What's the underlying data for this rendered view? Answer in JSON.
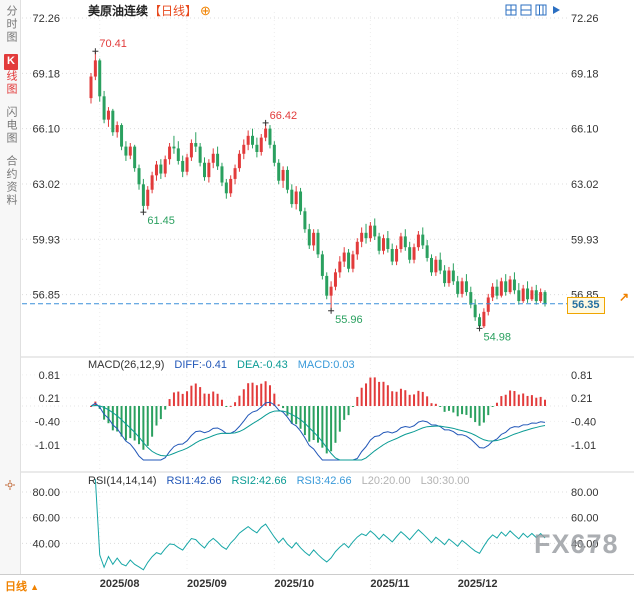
{
  "header": {
    "symbol": "美原油连续",
    "period_tag": "【日线】",
    "add_glyph": "⊕"
  },
  "sidebar": {
    "items": [
      {
        "label": "分时图",
        "active": false
      },
      {
        "badge": "K",
        "label": "线图",
        "active": true
      },
      {
        "label": "闪电图",
        "active": false
      },
      {
        "label": "合约资料",
        "active": false
      }
    ]
  },
  "price_panel": {
    "last_price": "56.35",
    "arrow_glyph": "↗"
  },
  "macd_panel": {
    "title": "MACD(26,12,9)",
    "diff": "DIFF:-0.41",
    "dea": "DEA:-0.43",
    "macd": "MACD:0.03"
  },
  "rsi_panel": {
    "title": "RSI(14,14,14)",
    "rsi1": "RSI1:42.66",
    "rsi2": "RSI2:42.66",
    "rsi3": "RSI3:42.66",
    "l20": "L20:20.00",
    "l30": "L30:30.00"
  },
  "bottom_bar": {
    "period_label": "日线",
    "arrow_glyph": "▲"
  },
  "watermark": "FX678",
  "colors": {
    "up": "#e23b3b",
    "down": "#2aa05f",
    "diff_line": "#2257b8",
    "dea_line": "#0a9b94",
    "rsi_line": "#18a7a7",
    "last_price_line": "#3a8fd9",
    "accent": "#f08200",
    "toolbar_icon": "#2b6fc2"
  },
  "chart_data": {
    "type": "candlestick",
    "period": "日线",
    "price_axis": [
      72.26,
      69.18,
      66.1,
      63.02,
      59.93,
      56.85
    ],
    "annotations": [
      {
        "bar": 1,
        "price": 70.41,
        "side": "above",
        "trend": "up"
      },
      {
        "bar": 40,
        "price": 66.42,
        "side": "above",
        "trend": "up"
      },
      {
        "bar": 12,
        "price": 61.45,
        "side": "below",
        "trend": "down"
      },
      {
        "bar": 55,
        "price": 55.96,
        "side": "below",
        "trend": "down"
      },
      {
        "bar": 89,
        "price": 54.98,
        "side": "below",
        "trend": "down"
      }
    ],
    "months": [
      {
        "label": "2025/08",
        "bar": 2
      },
      {
        "label": "2025/09",
        "bar": 22
      },
      {
        "label": "2025/10",
        "bar": 42
      },
      {
        "label": "2025/11",
        "bar": 64
      },
      {
        "label": "2025/12",
        "bar": 84
      }
    ],
    "indicators": {
      "macd": {
        "params": [
          26,
          12,
          9
        ],
        "diff": -0.41,
        "dea": -0.43,
        "macd": 0.03,
        "axis": [
          0.81,
          0.21,
          -0.4,
          -1.01
        ]
      },
      "rsi": {
        "params": [
          14,
          14,
          14
        ],
        "rsi1": 42.66,
        "rsi2": 42.66,
        "rsi3": 42.66,
        "l20": 20.0,
        "l30": 30.0,
        "axis": [
          80,
          60,
          40
        ]
      }
    },
    "ohlc": [
      [
        67.8,
        69.2,
        67.5,
        69.0
      ],
      [
        69.0,
        70.41,
        68.8,
        69.9
      ],
      [
        69.9,
        70.0,
        67.6,
        67.9
      ],
      [
        67.9,
        68.2,
        66.4,
        66.6
      ],
      [
        66.6,
        67.3,
        66.2,
        67.1
      ],
      [
        67.1,
        67.2,
        65.7,
        65.9
      ],
      [
        65.9,
        66.5,
        65.6,
        66.3
      ],
      [
        66.3,
        66.4,
        64.9,
        65.1
      ],
      [
        65.1,
        65.4,
        64.3,
        64.6
      ],
      [
        64.6,
        65.3,
        64.4,
        65.1
      ],
      [
        65.1,
        65.2,
        63.7,
        63.9
      ],
      [
        63.9,
        64.1,
        62.7,
        63.0
      ],
      [
        63.0,
        63.3,
        61.45,
        61.8
      ],
      [
        61.8,
        62.9,
        61.6,
        62.7
      ],
      [
        62.7,
        63.7,
        62.5,
        63.5
      ],
      [
        63.5,
        64.3,
        63.2,
        64.1
      ],
      [
        64.1,
        64.4,
        63.3,
        63.6
      ],
      [
        63.6,
        64.6,
        63.4,
        64.4
      ],
      [
        64.4,
        65.3,
        64.1,
        65.1
      ],
      [
        65.1,
        65.7,
        64.7,
        65.0
      ],
      [
        65.0,
        65.4,
        64.1,
        64.3
      ],
      [
        64.3,
        64.6,
        63.4,
        63.7
      ],
      [
        63.7,
        64.7,
        63.5,
        64.5
      ],
      [
        64.5,
        65.5,
        64.3,
        65.3
      ],
      [
        65.3,
        65.9,
        64.8,
        65.1
      ],
      [
        65.1,
        65.3,
        64.0,
        64.2
      ],
      [
        64.2,
        64.5,
        63.2,
        63.4
      ],
      [
        63.4,
        64.4,
        63.1,
        64.2
      ],
      [
        64.2,
        65.0,
        63.9,
        64.7
      ],
      [
        64.7,
        65.1,
        63.8,
        64.0
      ],
      [
        64.0,
        64.2,
        62.9,
        63.1
      ],
      [
        63.1,
        63.3,
        62.2,
        62.5
      ],
      [
        62.5,
        63.5,
        62.3,
        63.3
      ],
      [
        63.3,
        64.1,
        63.0,
        63.9
      ],
      [
        63.9,
        64.9,
        63.7,
        64.7
      ],
      [
        64.7,
        65.5,
        64.4,
        65.2
      ],
      [
        65.2,
        66.0,
        64.9,
        65.7
      ],
      [
        65.7,
        66.1,
        65.0,
        65.2
      ],
      [
        65.2,
        65.6,
        64.5,
        64.8
      ],
      [
        64.8,
        65.8,
        64.6,
        65.6
      ],
      [
        65.6,
        66.42,
        65.4,
        66.1
      ],
      [
        66.1,
        66.3,
        65.0,
        65.2
      ],
      [
        65.2,
        65.4,
        64.0,
        64.2
      ],
      [
        64.2,
        64.4,
        63.0,
        63.2
      ],
      [
        63.2,
        64.0,
        62.8,
        63.8
      ],
      [
        63.8,
        64.0,
        62.5,
        62.7
      ],
      [
        62.7,
        63.0,
        61.7,
        61.9
      ],
      [
        61.9,
        62.9,
        61.6,
        62.6
      ],
      [
        62.6,
        62.8,
        61.3,
        61.5
      ],
      [
        61.5,
        61.7,
        60.3,
        60.5
      ],
      [
        60.5,
        60.8,
        59.4,
        59.6
      ],
      [
        59.6,
        60.5,
        59.3,
        60.3
      ],
      [
        60.3,
        60.5,
        58.9,
        59.1
      ],
      [
        59.1,
        59.3,
        57.7,
        57.9
      ],
      [
        57.9,
        58.1,
        56.6,
        56.8
      ],
      [
        56.8,
        57.6,
        55.96,
        57.3
      ],
      [
        57.3,
        58.3,
        57.1,
        58.1
      ],
      [
        58.1,
        59.0,
        57.8,
        58.7
      ],
      [
        58.7,
        59.5,
        58.4,
        59.2
      ],
      [
        59.2,
        59.4,
        58.1,
        58.3
      ],
      [
        58.3,
        59.3,
        58.1,
        59.1
      ],
      [
        59.1,
        60.0,
        58.8,
        59.8
      ],
      [
        59.8,
        60.6,
        59.5,
        60.3
      ],
      [
        60.3,
        60.8,
        59.7,
        60.0
      ],
      [
        60.0,
        60.9,
        59.8,
        60.7
      ],
      [
        60.7,
        61.1,
        59.9,
        60.1
      ],
      [
        60.1,
        60.3,
        59.1,
        59.3
      ],
      [
        59.3,
        60.2,
        59.1,
        60.0
      ],
      [
        60.0,
        60.4,
        59.2,
        59.4
      ],
      [
        59.4,
        59.7,
        58.5,
        58.7
      ],
      [
        58.7,
        59.6,
        58.5,
        59.4
      ],
      [
        59.4,
        60.3,
        59.2,
        60.1
      ],
      [
        60.1,
        60.5,
        59.3,
        59.5
      ],
      [
        59.5,
        59.8,
        58.6,
        58.8
      ],
      [
        58.8,
        59.7,
        58.6,
        59.5
      ],
      [
        59.5,
        60.4,
        59.3,
        60.2
      ],
      [
        60.2,
        60.6,
        59.4,
        59.6
      ],
      [
        59.6,
        59.9,
        58.7,
        58.9
      ],
      [
        58.9,
        59.1,
        57.9,
        58.1
      ],
      [
        58.1,
        59.0,
        57.9,
        58.8
      ],
      [
        58.8,
        59.2,
        58.0,
        58.2
      ],
      [
        58.2,
        58.5,
        57.3,
        57.5
      ],
      [
        57.5,
        58.4,
        57.3,
        58.2
      ],
      [
        58.2,
        58.6,
        57.4,
        57.6
      ],
      [
        57.6,
        57.9,
        56.7,
        56.9
      ],
      [
        56.9,
        57.8,
        56.7,
        57.6
      ],
      [
        57.6,
        58.0,
        56.8,
        57.0
      ],
      [
        57.0,
        57.3,
        56.1,
        56.3
      ],
      [
        56.3,
        56.6,
        55.4,
        55.6
      ],
      [
        55.6,
        55.8,
        54.98,
        55.1
      ],
      [
        55.1,
        56.1,
        55.0,
        55.9
      ],
      [
        55.9,
        56.9,
        55.7,
        56.7
      ],
      [
        56.7,
        57.5,
        56.5,
        57.3
      ],
      [
        57.3,
        57.7,
        56.6,
        56.8
      ],
      [
        56.8,
        57.8,
        56.7,
        57.6
      ],
      [
        57.6,
        58.0,
        56.8,
        57.0
      ],
      [
        57.0,
        57.9,
        56.9,
        57.7
      ],
      [
        57.7,
        58.1,
        56.9,
        57.1
      ],
      [
        57.1,
        57.5,
        56.3,
        56.5
      ],
      [
        56.5,
        57.4,
        56.4,
        57.2
      ],
      [
        57.2,
        57.6,
        56.4,
        56.6
      ],
      [
        56.6,
        57.3,
        56.5,
        57.1
      ],
      [
        57.1,
        57.4,
        56.3,
        56.5
      ],
      [
        56.5,
        57.2,
        56.4,
        57.0
      ],
      [
        57.0,
        57.1,
        56.2,
        56.35
      ]
    ]
  }
}
